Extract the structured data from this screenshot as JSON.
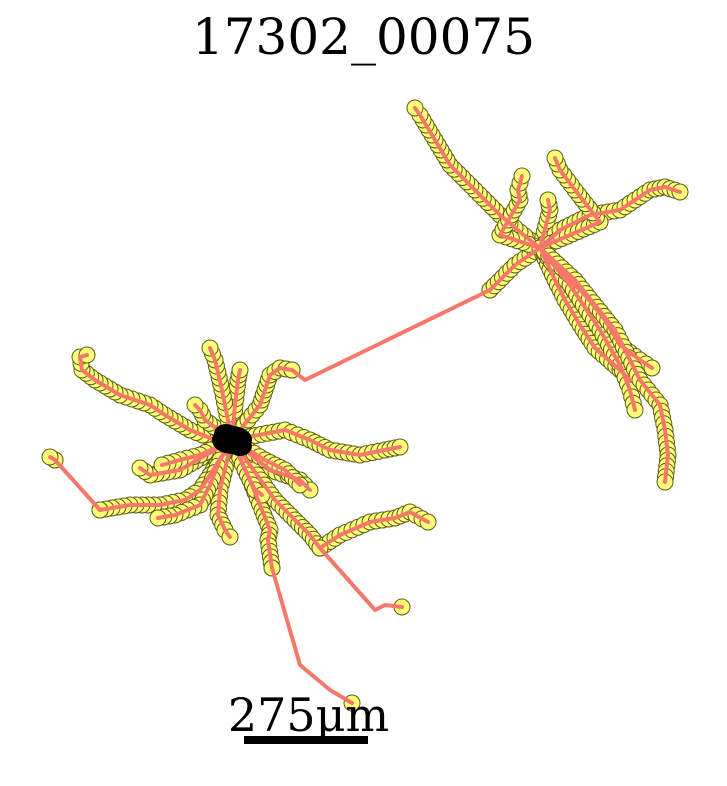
{
  "title": "17302_00075",
  "scale_bar": {
    "label": "275μm"
  },
  "colors": {
    "background": "#ffffff",
    "edge": "#f7786b",
    "node_fill": "#ffff77",
    "node_stroke": "#5b5b1e",
    "soma": "#000000"
  }
}
